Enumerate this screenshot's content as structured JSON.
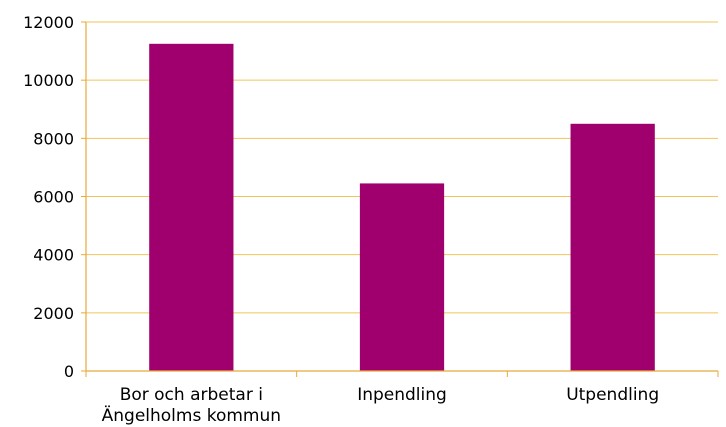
{
  "chart_data": {
    "type": "bar",
    "categories": [
      [
        "Bor och arbetar i",
        "Ängelholms kommun"
      ],
      [
        "Inpendling"
      ],
      [
        "Utpendling"
      ]
    ],
    "values": [
      11250,
      6450,
      8500
    ],
    "ylim": [
      0,
      12000
    ],
    "yticks": [
      0,
      2000,
      4000,
      6000,
      8000,
      10000,
      12000
    ],
    "ytick_labels": [
      "0",
      "2000",
      "4000",
      "6000",
      "8000",
      "10000",
      "12000"
    ],
    "grid": true,
    "legend": "none",
    "colors": {
      "bar": "#A0006E",
      "grid": "#F0C45A",
      "axis": "#E8A93A"
    }
  }
}
